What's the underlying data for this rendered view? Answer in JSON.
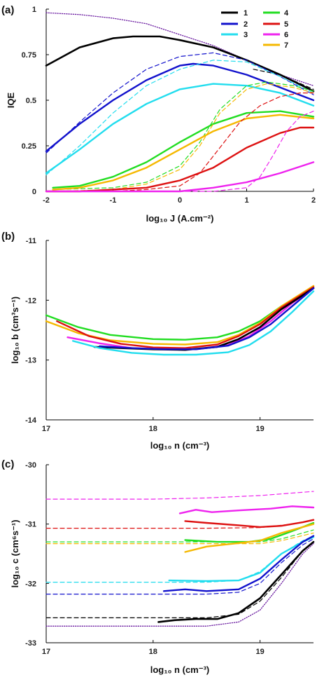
{
  "colors": {
    "1": "#000000",
    "2": "#1111cc",
    "3": "#22ddee",
    "4": "#22dd22",
    "5": "#dd1111",
    "6": "#ee22ee",
    "7": "#f5b800",
    "ref": "#6a1ba0"
  },
  "chart_data": [
    {
      "panel": "(a)",
      "type": "line",
      "xlabel": "log₁₀ J (A.cm⁻²)",
      "ylabel": "IQE",
      "xlim": [
        -2,
        2
      ],
      "ylim": [
        0,
        1
      ],
      "xticks": [
        "-2",
        "-1",
        "0",
        "1",
        "2"
      ],
      "yticks": [
        "0",
        "0.25",
        "0.5",
        "0.75",
        "1"
      ],
      "legend": {
        "placement": "top-right",
        "entries": [
          "1",
          "2",
          "3",
          "4",
          "5",
          "6",
          "7"
        ]
      },
      "series": [
        {
          "key": "ref",
          "style": "dotted",
          "x": [
            -2,
            -1.5,
            -1,
            -0.5,
            0,
            0.5,
            1,
            1.5,
            2
          ],
          "y": [
            0.98,
            0.97,
            0.95,
            0.92,
            0.86,
            0.8,
            0.72,
            0.64,
            0.58
          ]
        },
        {
          "key": "1",
          "style": "solid",
          "x": [
            -2,
            -1.5,
            -1,
            -0.7,
            -0.3,
            0,
            0.5,
            1,
            1.5,
            2
          ],
          "y": [
            0.69,
            0.79,
            0.84,
            0.85,
            0.85,
            0.83,
            0.79,
            0.72,
            0.64,
            0.55
          ]
        },
        {
          "key": "1",
          "style": "dashed",
          "x": [
            1.1,
            1.5,
            2
          ],
          "y": [
            0.67,
            0.64,
            0.56
          ]
        },
        {
          "key": "2",
          "style": "solid",
          "x": [
            -2,
            -1.5,
            -1,
            -0.5,
            0,
            0.2,
            0.5,
            1,
            1.5,
            2
          ],
          "y": [
            0.22,
            0.37,
            0.5,
            0.61,
            0.69,
            0.7,
            0.69,
            0.64,
            0.57,
            0.5
          ]
        },
        {
          "key": "2",
          "style": "dashed",
          "x": [
            -2,
            -1.5,
            -1,
            -0.5,
            0,
            0.5,
            1,
            1.5,
            2
          ],
          "y": [
            0.21,
            0.38,
            0.54,
            0.67,
            0.74,
            0.76,
            0.72,
            0.63,
            0.53
          ]
        },
        {
          "key": "3",
          "style": "solid",
          "x": [
            -2,
            -1.5,
            -1,
            -0.5,
            0,
            0.5,
            1,
            1.5,
            2
          ],
          "y": [
            0.1,
            0.23,
            0.37,
            0.48,
            0.56,
            0.59,
            0.58,
            0.54,
            0.47
          ]
        },
        {
          "key": "3",
          "style": "dashed",
          "x": [
            -2,
            -1.5,
            -1,
            -0.5,
            0,
            0.5,
            1,
            1.5,
            2
          ],
          "y": [
            0.09,
            0.25,
            0.43,
            0.58,
            0.67,
            0.72,
            0.71,
            0.63,
            0.54
          ]
        },
        {
          "key": "4",
          "style": "solid",
          "x": [
            -1.9,
            -1.5,
            -1,
            -0.5,
            0,
            0.5,
            1,
            1.5,
            2
          ],
          "y": [
            0.02,
            0.03,
            0.08,
            0.16,
            0.27,
            0.37,
            0.43,
            0.44,
            0.41
          ]
        },
        {
          "key": "4",
          "style": "dashed",
          "x": [
            -1.9,
            -1,
            -0.5,
            0,
            0.3,
            0.6,
            1,
            1.3,
            1.7,
            2
          ],
          "y": [
            0.01,
            0.02,
            0.05,
            0.14,
            0.27,
            0.45,
            0.58,
            0.6,
            0.58,
            0.55
          ]
        },
        {
          "key": "7",
          "style": "solid",
          "x": [
            -1.9,
            -1.5,
            -1,
            -0.5,
            0,
            0.5,
            1,
            1.5,
            2
          ],
          "y": [
            0.01,
            0.02,
            0.06,
            0.13,
            0.23,
            0.33,
            0.4,
            0.42,
            0.4
          ]
        },
        {
          "key": "7",
          "style": "dashed",
          "x": [
            -1.9,
            -1,
            -0.5,
            0,
            0.3,
            0.6,
            1,
            1.3,
            1.7,
            2
          ],
          "y": [
            0.0,
            0.01,
            0.04,
            0.12,
            0.25,
            0.43,
            0.56,
            0.59,
            0.57,
            0.54
          ]
        },
        {
          "key": "5",
          "style": "solid",
          "x": [
            -2,
            -1.5,
            -1,
            -0.5,
            0,
            0.5,
            1,
            1.5,
            1.8,
            2
          ],
          "y": [
            0.0,
            0.0,
            0.01,
            0.02,
            0.06,
            0.13,
            0.24,
            0.32,
            0.35,
            0.35
          ]
        },
        {
          "key": "5",
          "style": "dashed",
          "x": [
            -2,
            -1,
            -0.5,
            0,
            0.3,
            0.6,
            0.9,
            1.2,
            1.5,
            1.8,
            2
          ],
          "y": [
            0.0,
            0.0,
            0.01,
            0.03,
            0.1,
            0.24,
            0.38,
            0.47,
            0.52,
            0.54,
            0.54
          ]
        },
        {
          "key": "6",
          "style": "solid",
          "x": [
            -2,
            -1,
            -0.5,
            0,
            0.5,
            1,
            1.5,
            2
          ],
          "y": [
            0.0,
            0.0,
            0.0,
            0.0,
            0.02,
            0.05,
            0.1,
            0.16
          ]
        },
        {
          "key": "6",
          "style": "dashed",
          "x": [
            -2,
            0,
            0.5,
            1,
            1.2,
            1.4,
            1.6,
            1.8,
            2
          ],
          "y": [
            0.0,
            0.0,
            0.0,
            0.02,
            0.08,
            0.2,
            0.33,
            0.41,
            0.44
          ]
        }
      ]
    },
    {
      "panel": "(b)",
      "type": "line",
      "xlabel": "log₁₀ n (cm⁻³)",
      "ylabel": "log₁₀ b (cm³s⁻¹)",
      "xlim": [
        17,
        19.5
      ],
      "ylim": [
        -14,
        -11
      ],
      "xticks": [
        "17",
        "18",
        "19"
      ],
      "yticks": [
        "-11",
        "-12",
        "-13",
        "-14"
      ],
      "series": [
        {
          "key": "4",
          "style": "solid",
          "x": [
            17,
            17.3,
            17.6,
            18,
            18.3,
            18.6,
            18.8,
            19,
            19.2,
            19.5
          ],
          "y": [
            -12.25,
            -12.45,
            -12.58,
            -12.65,
            -12.66,
            -12.62,
            -12.52,
            -12.35,
            -12.1,
            -11.78
          ]
        },
        {
          "key": "7",
          "style": "solid",
          "x": [
            17,
            17.3,
            17.6,
            18,
            18.3,
            18.6,
            18.8,
            19,
            19.2,
            19.5
          ],
          "y": [
            -12.35,
            -12.55,
            -12.67,
            -12.73,
            -12.74,
            -12.7,
            -12.58,
            -12.38,
            -12.1,
            -11.76
          ]
        },
        {
          "key": "5",
          "style": "solid",
          "x": [
            17.1,
            17.4,
            17.7,
            18,
            18.3,
            18.6,
            18.8,
            19,
            19.2,
            19.5
          ],
          "y": [
            -12.35,
            -12.6,
            -12.73,
            -12.79,
            -12.8,
            -12.74,
            -12.6,
            -12.4,
            -12.12,
            -11.78
          ]
        },
        {
          "key": "6",
          "style": "solid",
          "x": [
            17.2,
            17.5,
            17.8,
            18.1,
            18.4,
            18.7,
            18.9,
            19.1,
            19.3,
            19.5
          ],
          "y": [
            -12.62,
            -12.72,
            -12.8,
            -12.82,
            -12.82,
            -12.75,
            -12.6,
            -12.35,
            -12.05,
            -11.8
          ]
        },
        {
          "key": "1",
          "style": "solid",
          "x": [
            17.45,
            17.7,
            18,
            18.3,
            18.6,
            18.8,
            19,
            19.2,
            19.5
          ],
          "y": [
            -12.78,
            -12.8,
            -12.82,
            -12.83,
            -12.78,
            -12.65,
            -12.45,
            -12.15,
            -11.8
          ]
        },
        {
          "key": "2",
          "style": "solid",
          "x": [
            17.5,
            17.8,
            18.1,
            18.4,
            18.7,
            18.9,
            19.1,
            19.3,
            19.5
          ],
          "y": [
            -12.77,
            -12.8,
            -12.82,
            -12.82,
            -12.76,
            -12.62,
            -12.4,
            -12.1,
            -11.8
          ]
        },
        {
          "key": "3",
          "style": "solid",
          "x": [
            17.25,
            17.5,
            17.8,
            18.1,
            18.4,
            18.7,
            18.9,
            19.1,
            19.3,
            19.5
          ],
          "y": [
            -12.68,
            -12.8,
            -12.88,
            -12.91,
            -12.91,
            -12.87,
            -12.75,
            -12.52,
            -12.2,
            -11.85
          ]
        }
      ]
    },
    {
      "panel": "(c)",
      "type": "line",
      "xlabel": "log₁₀ n (cm⁻³)",
      "ylabel": "log₁₀ c (cm⁶s⁻¹)",
      "xlim": [
        17,
        19.5
      ],
      "ylim": [
        -33,
        -30
      ],
      "xticks": [
        "17",
        "18",
        "19"
      ],
      "yticks": [
        "-30",
        "-31",
        "-32",
        "-33"
      ],
      "series": [
        {
          "key": "6",
          "style": "dashed",
          "x": [
            17,
            18,
            18.5,
            19,
            19.5
          ],
          "y": [
            -30.58,
            -30.58,
            -30.56,
            -30.52,
            -30.45
          ]
        },
        {
          "key": "6",
          "style": "solid",
          "x": [
            18.25,
            18.4,
            18.55,
            18.8,
            19.1,
            19.3,
            19.5
          ],
          "y": [
            -30.82,
            -30.76,
            -30.8,
            -30.77,
            -30.74,
            -30.7,
            -30.72
          ]
        },
        {
          "key": "5",
          "style": "dashed",
          "x": [
            17,
            18.5,
            19,
            19.3,
            19.5
          ],
          "y": [
            -31.07,
            -31.07,
            -31.06,
            -31.0,
            -30.93
          ]
        },
        {
          "key": "5",
          "style": "solid",
          "x": [
            18.3,
            18.5,
            18.8,
            19,
            19.2,
            19.4,
            19.5
          ],
          "y": [
            -30.95,
            -30.98,
            -31.02,
            -31.05,
            -31.03,
            -30.97,
            -30.93
          ]
        },
        {
          "key": "4",
          "style": "dashed",
          "x": [
            17,
            18.5,
            19,
            19.2,
            19.5
          ],
          "y": [
            -31.3,
            -31.3,
            -31.3,
            -31.25,
            -31.1
          ]
        },
        {
          "key": "7",
          "style": "dashed",
          "x": [
            17,
            18.5,
            19,
            19.2,
            19.5
          ],
          "y": [
            -31.33,
            -31.33,
            -31.33,
            -31.28,
            -31.15
          ]
        },
        {
          "key": "4",
          "style": "solid",
          "x": [
            18.3,
            18.6,
            18.9,
            19.1,
            19.3,
            19.5
          ],
          "y": [
            -31.27,
            -31.3,
            -31.3,
            -31.25,
            -31.12,
            -30.98
          ]
        },
        {
          "key": "7",
          "style": "solid",
          "x": [
            18.3,
            18.5,
            18.8,
            19,
            19.2,
            19.5
          ],
          "y": [
            -31.47,
            -31.38,
            -31.32,
            -31.28,
            -31.15,
            -31.0
          ]
        },
        {
          "key": "3",
          "style": "dashed",
          "x": [
            17,
            18.5,
            18.8,
            19,
            19.2,
            19.4,
            19.5
          ],
          "y": [
            -31.98,
            -31.98,
            -31.95,
            -31.8,
            -31.5,
            -31.28,
            -31.2
          ]
        },
        {
          "key": "3",
          "style": "solid",
          "x": [
            18.15,
            18.5,
            18.8,
            19,
            19.2,
            19.4,
            19.5
          ],
          "y": [
            -31.95,
            -31.96,
            -31.95,
            -31.82,
            -31.5,
            -31.3,
            -31.22
          ]
        },
        {
          "key": "2",
          "style": "dashed",
          "x": [
            17,
            18.5,
            18.8,
            19,
            19.2,
            19.4,
            19.5
          ],
          "y": [
            -32.18,
            -32.18,
            -32.15,
            -32.0,
            -31.65,
            -31.35,
            -31.25
          ]
        },
        {
          "key": "2",
          "style": "solid",
          "x": [
            18.1,
            18.3,
            18.5,
            18.8,
            19,
            19.2,
            19.4,
            19.5
          ],
          "y": [
            -32.13,
            -32.1,
            -32.13,
            -32.1,
            -31.92,
            -31.6,
            -31.3,
            -31.2
          ]
        },
        {
          "key": "1",
          "style": "dashed",
          "x": [
            17,
            18.5,
            18.8,
            19,
            19.2,
            19.4,
            19.5
          ],
          "y": [
            -32.58,
            -32.58,
            -32.52,
            -32.3,
            -31.9,
            -31.45,
            -31.3
          ]
        },
        {
          "key": "1",
          "style": "solid",
          "x": [
            18.05,
            18.2,
            18.4,
            18.6,
            18.8,
            19,
            19.2,
            19.4,
            19.5
          ],
          "y": [
            -32.65,
            -32.62,
            -32.6,
            -32.6,
            -32.5,
            -32.25,
            -31.85,
            -31.45,
            -31.3
          ]
        },
        {
          "key": "ref",
          "style": "dotted",
          "x": [
            17,
            18.5,
            18.8,
            19,
            19.2,
            19.4,
            19.5
          ],
          "y": [
            -32.72,
            -32.72,
            -32.65,
            -32.45,
            -32.0,
            -31.5,
            -31.33
          ]
        }
      ]
    }
  ]
}
